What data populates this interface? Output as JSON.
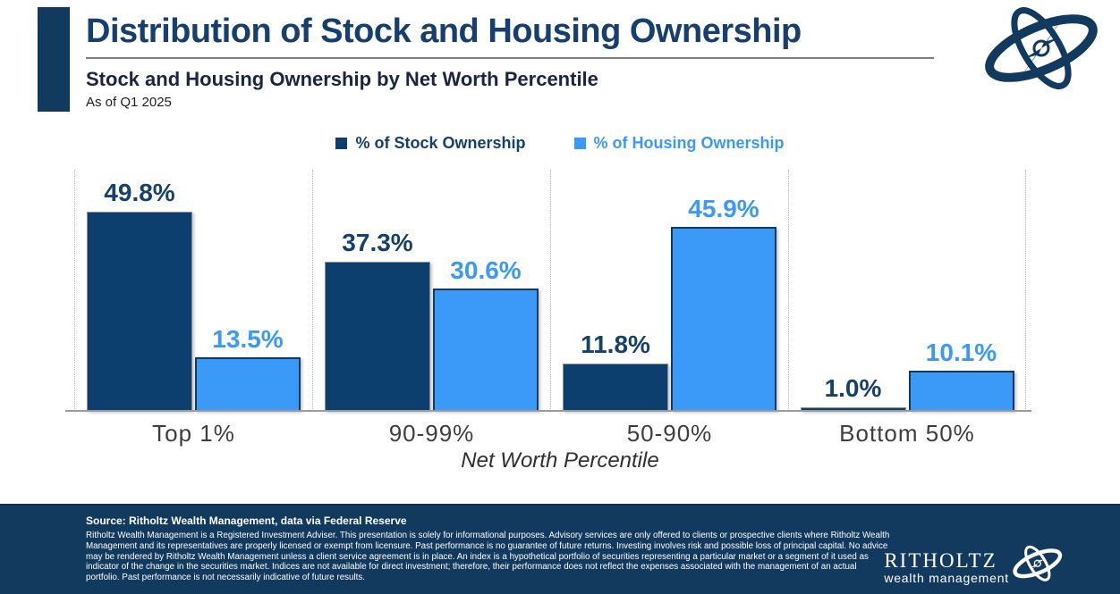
{
  "header": {
    "title": "Distribution of Stock and Housing Ownership",
    "subtitle": "Stock and Housing Ownership by Net Worth Percentile",
    "as_of": "As of Q1 2025"
  },
  "chart_data": {
    "type": "bar",
    "categories": [
      "Top 1%",
      "90-99%",
      "50-90%",
      "Bottom 50%"
    ],
    "series": [
      {
        "name": "% of Stock Ownership",
        "color": "#0c3f6d",
        "label_color": "#16406d",
        "values": [
          49.8,
          37.3,
          11.8,
          1.0
        ]
      },
      {
        "name": "% of Housing Ownership",
        "color": "#3b99f8",
        "label_color": "#3b99f8",
        "values": [
          13.5,
          30.6,
          45.9,
          10.1
        ]
      }
    ],
    "value_suffix": "%",
    "title": "Stock and Housing Ownership by Net Worth Percentile",
    "xlabel": "Net Worth Percentile",
    "ylabel": "",
    "ylim": [
      0,
      60
    ],
    "grid": "vertical-dotted-group-separators",
    "legend_position": "top-center",
    "value_labels": "above-bars"
  },
  "footer": {
    "source": "Source: Ritholtz Wealth Management, data via Federal Reserve",
    "disclaimer": "Ritholtz Wealth Management is a Registered Investment Adviser. This presentation is solely for informational purposes. Advisory services are only offered to clients or prospective clients where Ritholtz Wealth Management and its representatives are properly licensed or exempt from licensure. Past performance is no guarantee of future returns. Investing involves risk and possible loss of principal capital. No advice may be rendered by Ritholtz Wealth Management unless a client service agreement is in place. An index is a hypothetical portfolio of securities representing a particular market or a segment of it used as indicator of the change in the securities market. Indices are not available for direct investment; therefore, their performance does not reflect the expenses associated with the management of an actual portfolio. Past performance is not necessarily indicative of future results.",
    "brand_name": "RITHOLTZ",
    "brand_subtitle": "wealth management"
  },
  "colors": {
    "navy": "#12395e",
    "stock_bar": "#0c3f6d",
    "housing_bar": "#3b99f8",
    "footer_bg": "#123a5e",
    "gridline": "#b8b8b8"
  }
}
